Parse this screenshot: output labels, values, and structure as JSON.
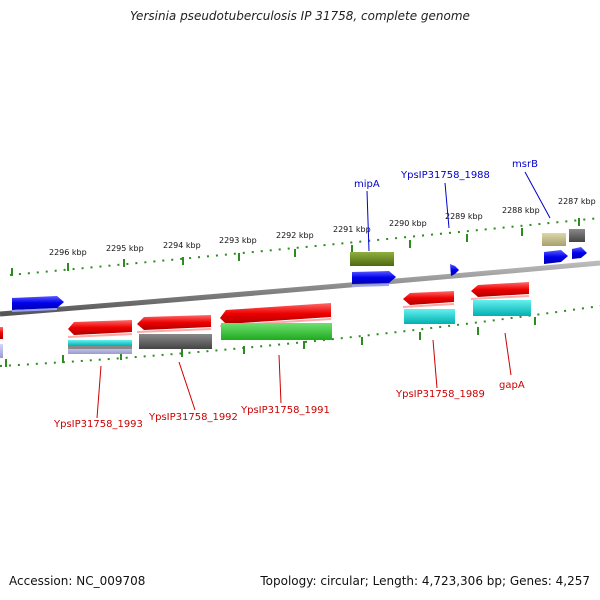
{
  "title": "Yersinia pseudotuberculosis IP 31758, complete genome",
  "accession": "Accession: NC_009708",
  "summary": "Topology: circular; Length: 4,723,306 bp; Genes: 4,257",
  "ticks": [
    "2296 kbp",
    "2295 kbp",
    "2294 kbp",
    "2293 kbp",
    "2292 kbp",
    "2291 kbp",
    "2290 kbp",
    "2289 kbp",
    "2288 kbp",
    "2287 kbp"
  ],
  "forward_labels": [
    "mipA",
    "YpsIP31758_1988",
    "msrB"
  ],
  "reverse_labels": [
    "YpsIP31758_1993",
    "YpsIP31758_1992",
    "YpsIP31758_1991",
    "YpsIP31758_1989",
    "gapA"
  ],
  "colors": {
    "cds_forward": "#0000ee",
    "cds_reverse": "#ee0000",
    "backbone": "#888888",
    "tick": "#2e8b22",
    "gc_olive": "#6b8e23",
    "gc_teal": "#00cccc",
    "gc_gray": "#666666",
    "gc_green": "#33cc33",
    "gc_khaki": "#c8c08a"
  }
}
